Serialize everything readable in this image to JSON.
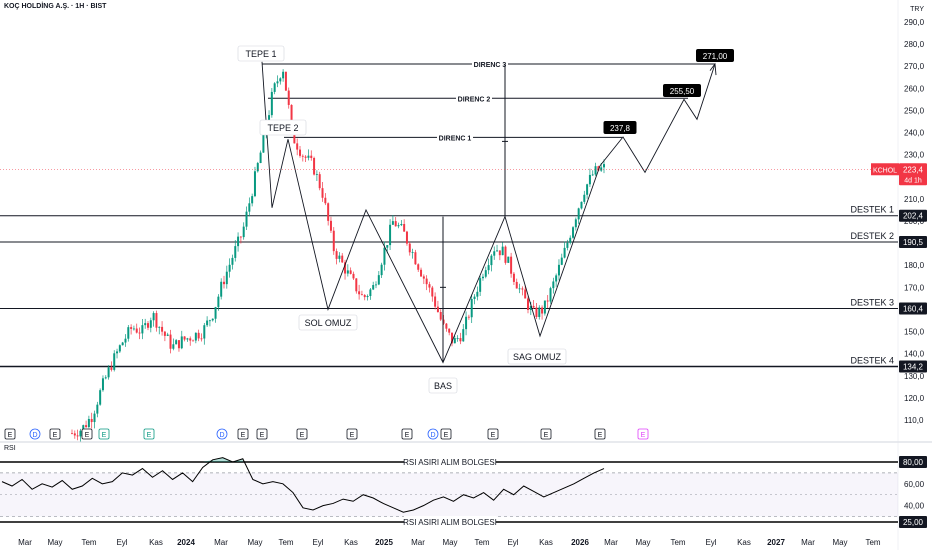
{
  "header": {
    "title": "KOÇ HOLDİNG A.Ş. · 1H · BIST",
    "currency": "TRY"
  },
  "chart_data": [
    {
      "type": "candlestick",
      "name": "price",
      "ylim": [
        100,
        295
      ],
      "yticks": [
        "110,0",
        "120,0",
        "130,0",
        "140,0",
        "150,0",
        "160,0",
        "170,0",
        "180,0",
        "190,0",
        "200,0",
        "210,0",
        "220,0",
        "230,0",
        "240,0",
        "250,0",
        "260,0",
        "270,0",
        "280,0",
        "290,0"
      ],
      "ytick_values": [
        110,
        120,
        130,
        140,
        150,
        160,
        170,
        180,
        190,
        200,
        210,
        220,
        230,
        240,
        250,
        260,
        270,
        280,
        290
      ],
      "xticks": [
        "Mar",
        "May",
        "Tem",
        "Eyl",
        "Kas",
        "2024",
        "Mar",
        "May",
        "Tem",
        "Eyl",
        "Kas",
        "2025",
        "Mar",
        "May",
        "Tem",
        "Eyl",
        "Kas",
        "2026",
        "Mar",
        "May",
        "Tem",
        "Eyl",
        "Kas",
        "2027",
        "Mar",
        "May",
        "Tem"
      ],
      "close_path": [
        104,
        106,
        112,
        125,
        136,
        145,
        152,
        150,
        158,
        150,
        143,
        146,
        148,
        150,
        158,
        172,
        184,
        195,
        215,
        235,
        258,
        270,
        238,
        230,
        225,
        212,
        188,
        180,
        172,
        165,
        170,
        185,
        200,
        195,
        185,
        175,
        165,
        152,
        145,
        150,
        165,
        178,
        188,
        186,
        175,
        165,
        158,
        160,
        172,
        185,
        200,
        214,
        222,
        224
      ],
      "current_price": "223,4",
      "ticker": "KCHOL",
      "time_to_bar": "4d 1h",
      "levels": [
        {
          "name": "DESTEK 1",
          "price": 202.4,
          "value_label": "202,4"
        },
        {
          "name": "DESTEK 2",
          "price": 190.5,
          "value_label": "190,5"
        },
        {
          "name": "DESTEK 3",
          "price": 160.4,
          "value_label": "160,4"
        },
        {
          "name": "DESTEK 4",
          "price": 134.2,
          "value_label": "134,2"
        }
      ],
      "resistances": [
        {
          "name": "DIRENC 1",
          "price": 237.8
        },
        {
          "name": "DIRENC 2",
          "price": 255.5
        },
        {
          "name": "DIRENC 3",
          "price": 271.0
        }
      ],
      "targets": [
        "237,8",
        "255,50",
        "271,00"
      ],
      "annotations": [
        "TEPE 1",
        "TEPE 2",
        "SOL OMUZ",
        "BAS",
        "SAG OMUZ"
      ],
      "event_markers": [
        "E",
        "D",
        "E",
        "E",
        "E",
        "E",
        "D",
        "E",
        "E",
        "E",
        "E",
        "E",
        "D",
        "E",
        "E",
        "E",
        "E",
        "E"
      ]
    },
    {
      "type": "line",
      "name": "RSI",
      "ylim": [
        20,
        90
      ],
      "yticks": [
        "40,00",
        "60,00"
      ],
      "ytick_values": [
        40,
        60
      ],
      "bands": [
        {
          "label": "RSI ASIRI ALIM BOLGESI",
          "value": 80,
          "value_label": "80,00"
        },
        {
          "label": "RSI ASIRI ALIM BOLGESI",
          "value": 25,
          "value_label": "25,00"
        }
      ],
      "values": [
        62,
        58,
        64,
        55,
        60,
        57,
        63,
        55,
        58,
        65,
        60,
        62,
        70,
        68,
        74,
        66,
        72,
        64,
        70,
        62,
        75,
        82,
        84,
        80,
        83,
        64,
        60,
        62,
        60,
        52,
        38,
        36,
        40,
        42,
        46,
        44,
        50,
        47,
        42,
        38,
        34,
        36,
        40,
        45,
        48,
        44,
        50,
        47,
        52,
        45,
        55,
        50,
        58,
        53,
        48,
        52,
        56,
        60,
        65,
        70,
        74
      ]
    },
    {
      "type": "label",
      "name": "rsi-title",
      "title": "RSI"
    }
  ]
}
